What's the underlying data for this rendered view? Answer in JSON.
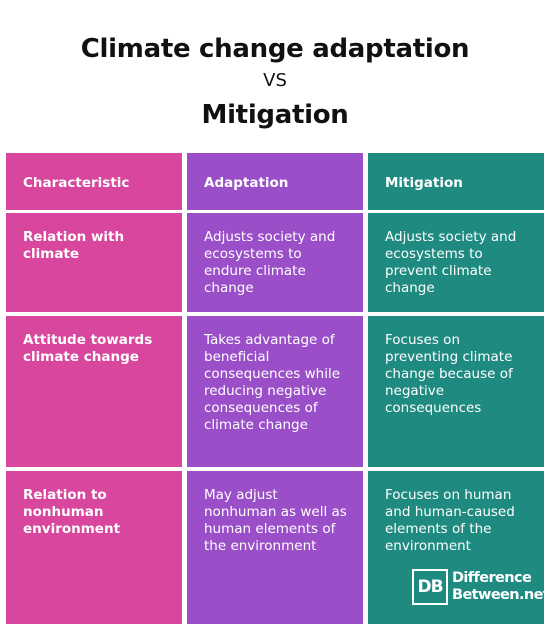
{
  "title": {
    "line1": "Climate change adaptation",
    "vs": "VS",
    "line2": "Mitigation"
  },
  "table": {
    "headers": [
      "Characteristic",
      "Adaptation",
      "Mitigation"
    ],
    "rows": [
      {
        "characteristic": "Relation with climate",
        "adaptation": "Adjusts society and ecosystems to endure climate change",
        "mitigation": "Adjusts society and ecosystems to prevent climate change"
      },
      {
        "characteristic": "Attitude towards climate change",
        "adaptation": "Takes advantage of beneficial consequences while reducing negative consequences of climate change",
        "mitigation": "Focuses on preventing climate change because of negative consequences"
      },
      {
        "characteristic": "Relation to nonhuman environment",
        "adaptation": "May adjust nonhuman as well as human elements of the environment",
        "mitigation": "Focuses on human and human-caused elements of the environment"
      }
    ]
  },
  "logo": {
    "mark": "DB",
    "line1": "Difference",
    "line2": "Between.net"
  },
  "colors": {
    "characteristic_column": "#d8479d",
    "adaptation_column": "#9a4fc9",
    "mitigation_column": "#1e8a80"
  }
}
